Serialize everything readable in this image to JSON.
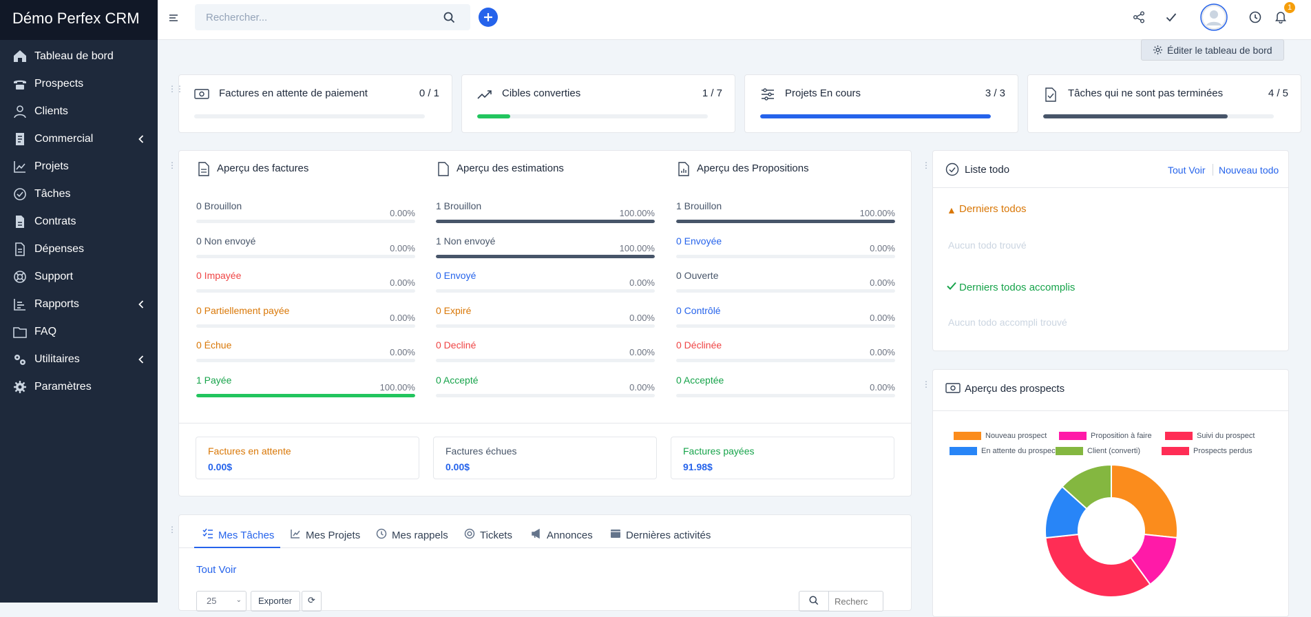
{
  "sidebar": {
    "brand": "Démo Perfex CRM",
    "items": [
      {
        "label": "Tableau de bord",
        "icon": "home-icon"
      },
      {
        "label": "Prospects",
        "icon": "tty-icon"
      },
      {
        "label": "Clients",
        "icon": "user-icon"
      },
      {
        "label": "Commercial",
        "icon": "receipt-icon"
      },
      {
        "label": "Projets",
        "icon": "chart-icon"
      },
      {
        "label": "Tâches",
        "icon": "check-circle-icon"
      },
      {
        "label": "Contrats",
        "icon": "contract-icon"
      },
      {
        "label": "Dépenses",
        "icon": "file-icon"
      },
      {
        "label": "Support",
        "icon": "lifebuoy-icon"
      },
      {
        "label": "Rapports",
        "icon": "bar-chart-icon"
      },
      {
        "label": "FAQ",
        "icon": "folder-icon"
      },
      {
        "label": "Utilitaires",
        "icon": "cogs-icon"
      },
      {
        "label": "Paramètres",
        "icon": "gear-icon"
      }
    ]
  },
  "topbar": {
    "search_placeholder": "Rechercher...",
    "notifications_count": "1"
  },
  "dashboard": {
    "edit_label": "Éditer le tableau de bord"
  },
  "stats": [
    {
      "title": "Factures en attente de paiement",
      "value": "0 / 1",
      "progress": 0,
      "color": "#22c55e"
    },
    {
      "title": "Cibles converties",
      "value": "1 / 7",
      "progress": 0.143,
      "color": "#22c55e"
    },
    {
      "title": "Projets En cours",
      "value": "3 / 3",
      "progress": 1,
      "color": "#2563eb"
    },
    {
      "title": "Tâches qui ne sont pas terminées",
      "value": "4 / 5",
      "progress": 0.8,
      "color": "#475569"
    }
  ],
  "overview": {
    "invoices": {
      "title": "Aperçu des factures",
      "rows": [
        {
          "label": "0 Brouillon",
          "pct": "0.00%",
          "value": 0,
          "color": "#475569"
        },
        {
          "label": "0 Non envoyé",
          "pct": "0.00%",
          "value": 0,
          "color": "#475569"
        },
        {
          "label": "0 Impayée",
          "pct": "0.00%",
          "value": 0,
          "color": "#ef4444"
        },
        {
          "label": "0 Partiellement payée",
          "pct": "0.00%",
          "value": 0,
          "color": "#d97706"
        },
        {
          "label": "0 Échue",
          "pct": "0.00%",
          "value": 0,
          "color": "#d97706"
        },
        {
          "label": "1 Payée",
          "pct": "100.00%",
          "value": 1,
          "color": "#16a34a",
          "bar": "#22c55e"
        }
      ]
    },
    "estimates": {
      "title": "Aperçu des estimations",
      "rows": [
        {
          "label": "1 Brouillon",
          "pct": "100.00%",
          "value": 1,
          "color": "#475569",
          "bar": "#475569"
        },
        {
          "label": "1 Non envoyé",
          "pct": "100.00%",
          "value": 1,
          "color": "#475569",
          "bar": "#475569"
        },
        {
          "label": "0 Envoyé",
          "pct": "0.00%",
          "value": 0,
          "color": "#2563eb"
        },
        {
          "label": "0 Expiré",
          "pct": "0.00%",
          "value": 0,
          "color": "#d97706"
        },
        {
          "label": "0 Decliné",
          "pct": "0.00%",
          "value": 0,
          "color": "#ef4444"
        },
        {
          "label": "0 Accepté",
          "pct": "0.00%",
          "value": 0,
          "color": "#16a34a"
        }
      ]
    },
    "proposals": {
      "title": "Aperçu des Propositions",
      "rows": [
        {
          "label": "1 Brouillon",
          "pct": "100.00%",
          "value": 1,
          "color": "#475569",
          "bar": "#475569"
        },
        {
          "label": "0 Envoyée",
          "pct": "0.00%",
          "value": 0,
          "color": "#2563eb"
        },
        {
          "label": "0 Ouverte",
          "pct": "0.00%",
          "value": 0,
          "color": "#475569"
        },
        {
          "label": "0 Contrôlé",
          "pct": "0.00%",
          "value": 0,
          "color": "#2563eb"
        },
        {
          "label": "0 Déclinée",
          "pct": "0.00%",
          "value": 0,
          "color": "#ef4444"
        },
        {
          "label": "0 Acceptée",
          "pct": "0.00%",
          "value": 0,
          "color": "#16a34a"
        }
      ]
    },
    "totals": [
      {
        "title": "Factures en attente",
        "value": "0.00$",
        "color": "#d97706"
      },
      {
        "title": "Factures échues",
        "value": "0.00$",
        "color": "#475569"
      },
      {
        "title": "Factures payées",
        "value": "91.98$",
        "color": "#16a34a"
      }
    ]
  },
  "todo": {
    "title": "Liste todo",
    "view_all": "Tout Voir",
    "new_todo": "Nouveau todo",
    "latest_title": "Derniers todos",
    "latest_empty": "Aucun todo trouvé",
    "done_title": "Derniers todos accomplis",
    "done_empty": "Aucun todo accompli trouvé"
  },
  "leads": {
    "title": "Aperçu des prospects"
  },
  "chart_data": {
    "type": "pie",
    "legend": [
      "Nouveau prospect",
      "Proposition à faire",
      "Suivi du prospect",
      "En attente du prospect",
      "Client (converti)",
      "Prospects perdus"
    ],
    "legend_colors": [
      "#fb8c1c",
      "#ff1aa8",
      "#ff2d55",
      "#2885f7",
      "#84b740",
      "#ff2d55"
    ],
    "slices": [
      {
        "name": "Nouveau prospect",
        "value": 4,
        "color": "#fb8c1c"
      },
      {
        "name": "Proposition à faire",
        "value": 2,
        "color": "#ff1aa8"
      },
      {
        "name": "Suivi du prospect",
        "value": 5,
        "color": "#ff2d55"
      },
      {
        "name": "En attente du prospect",
        "value": 2,
        "color": "#2885f7"
      },
      {
        "name": "Client (converti)",
        "value": 2,
        "color": "#84b740"
      }
    ],
    "legend_placement": "top"
  },
  "tabs": {
    "items": [
      "Mes Tâches",
      "Mes Projets",
      "Mes rappels",
      "Tickets",
      "Annonces",
      "Dernières activités"
    ],
    "view_all": "Tout Voir",
    "page_size": "25",
    "export": "Exporter",
    "search_placeholder": "Recherc"
  }
}
